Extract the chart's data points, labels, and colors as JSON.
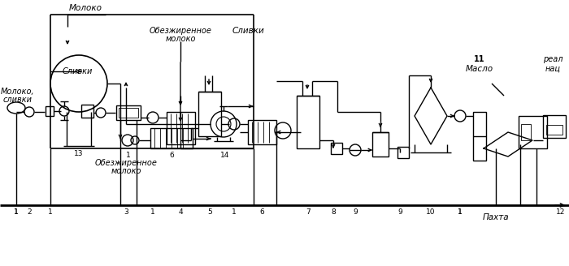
{
  "bg_color": "#ffffff",
  "line_color": "#000000",
  "fig_width": 7.0,
  "fig_height": 3.28,
  "dpi": 100,
  "labels": {
    "moloko_top": "Молоко",
    "obezh_top1": "Обезжиренное",
    "moloko_top2": "молоко",
    "slivki_top": "Сливки",
    "obezh_bot1": "Обезжиренное",
    "moloko_bot1": "молоко",
    "moloko_slivki1": "Молоко,",
    "moloko_slivki2": "сливки",
    "slivki_left": "Сливки",
    "maslo": "Масло",
    "pahta": "Пахта",
    "reali": "реал",
    "nats": "нац",
    "num_13": "13",
    "num_1a": "1",
    "num_6a": "6",
    "num_14": "14",
    "num_1b": "1",
    "num_2": "2",
    "num_3": "3",
    "num_1c": "1",
    "num_4": "4",
    "num_5": "5",
    "num_1d": "1",
    "num_6b": "6",
    "num_7": "7",
    "num_8": "8",
    "num_9": "9",
    "num_10": "10",
    "num_1e": "1",
    "num_11": "11",
    "num_12": "12"
  }
}
